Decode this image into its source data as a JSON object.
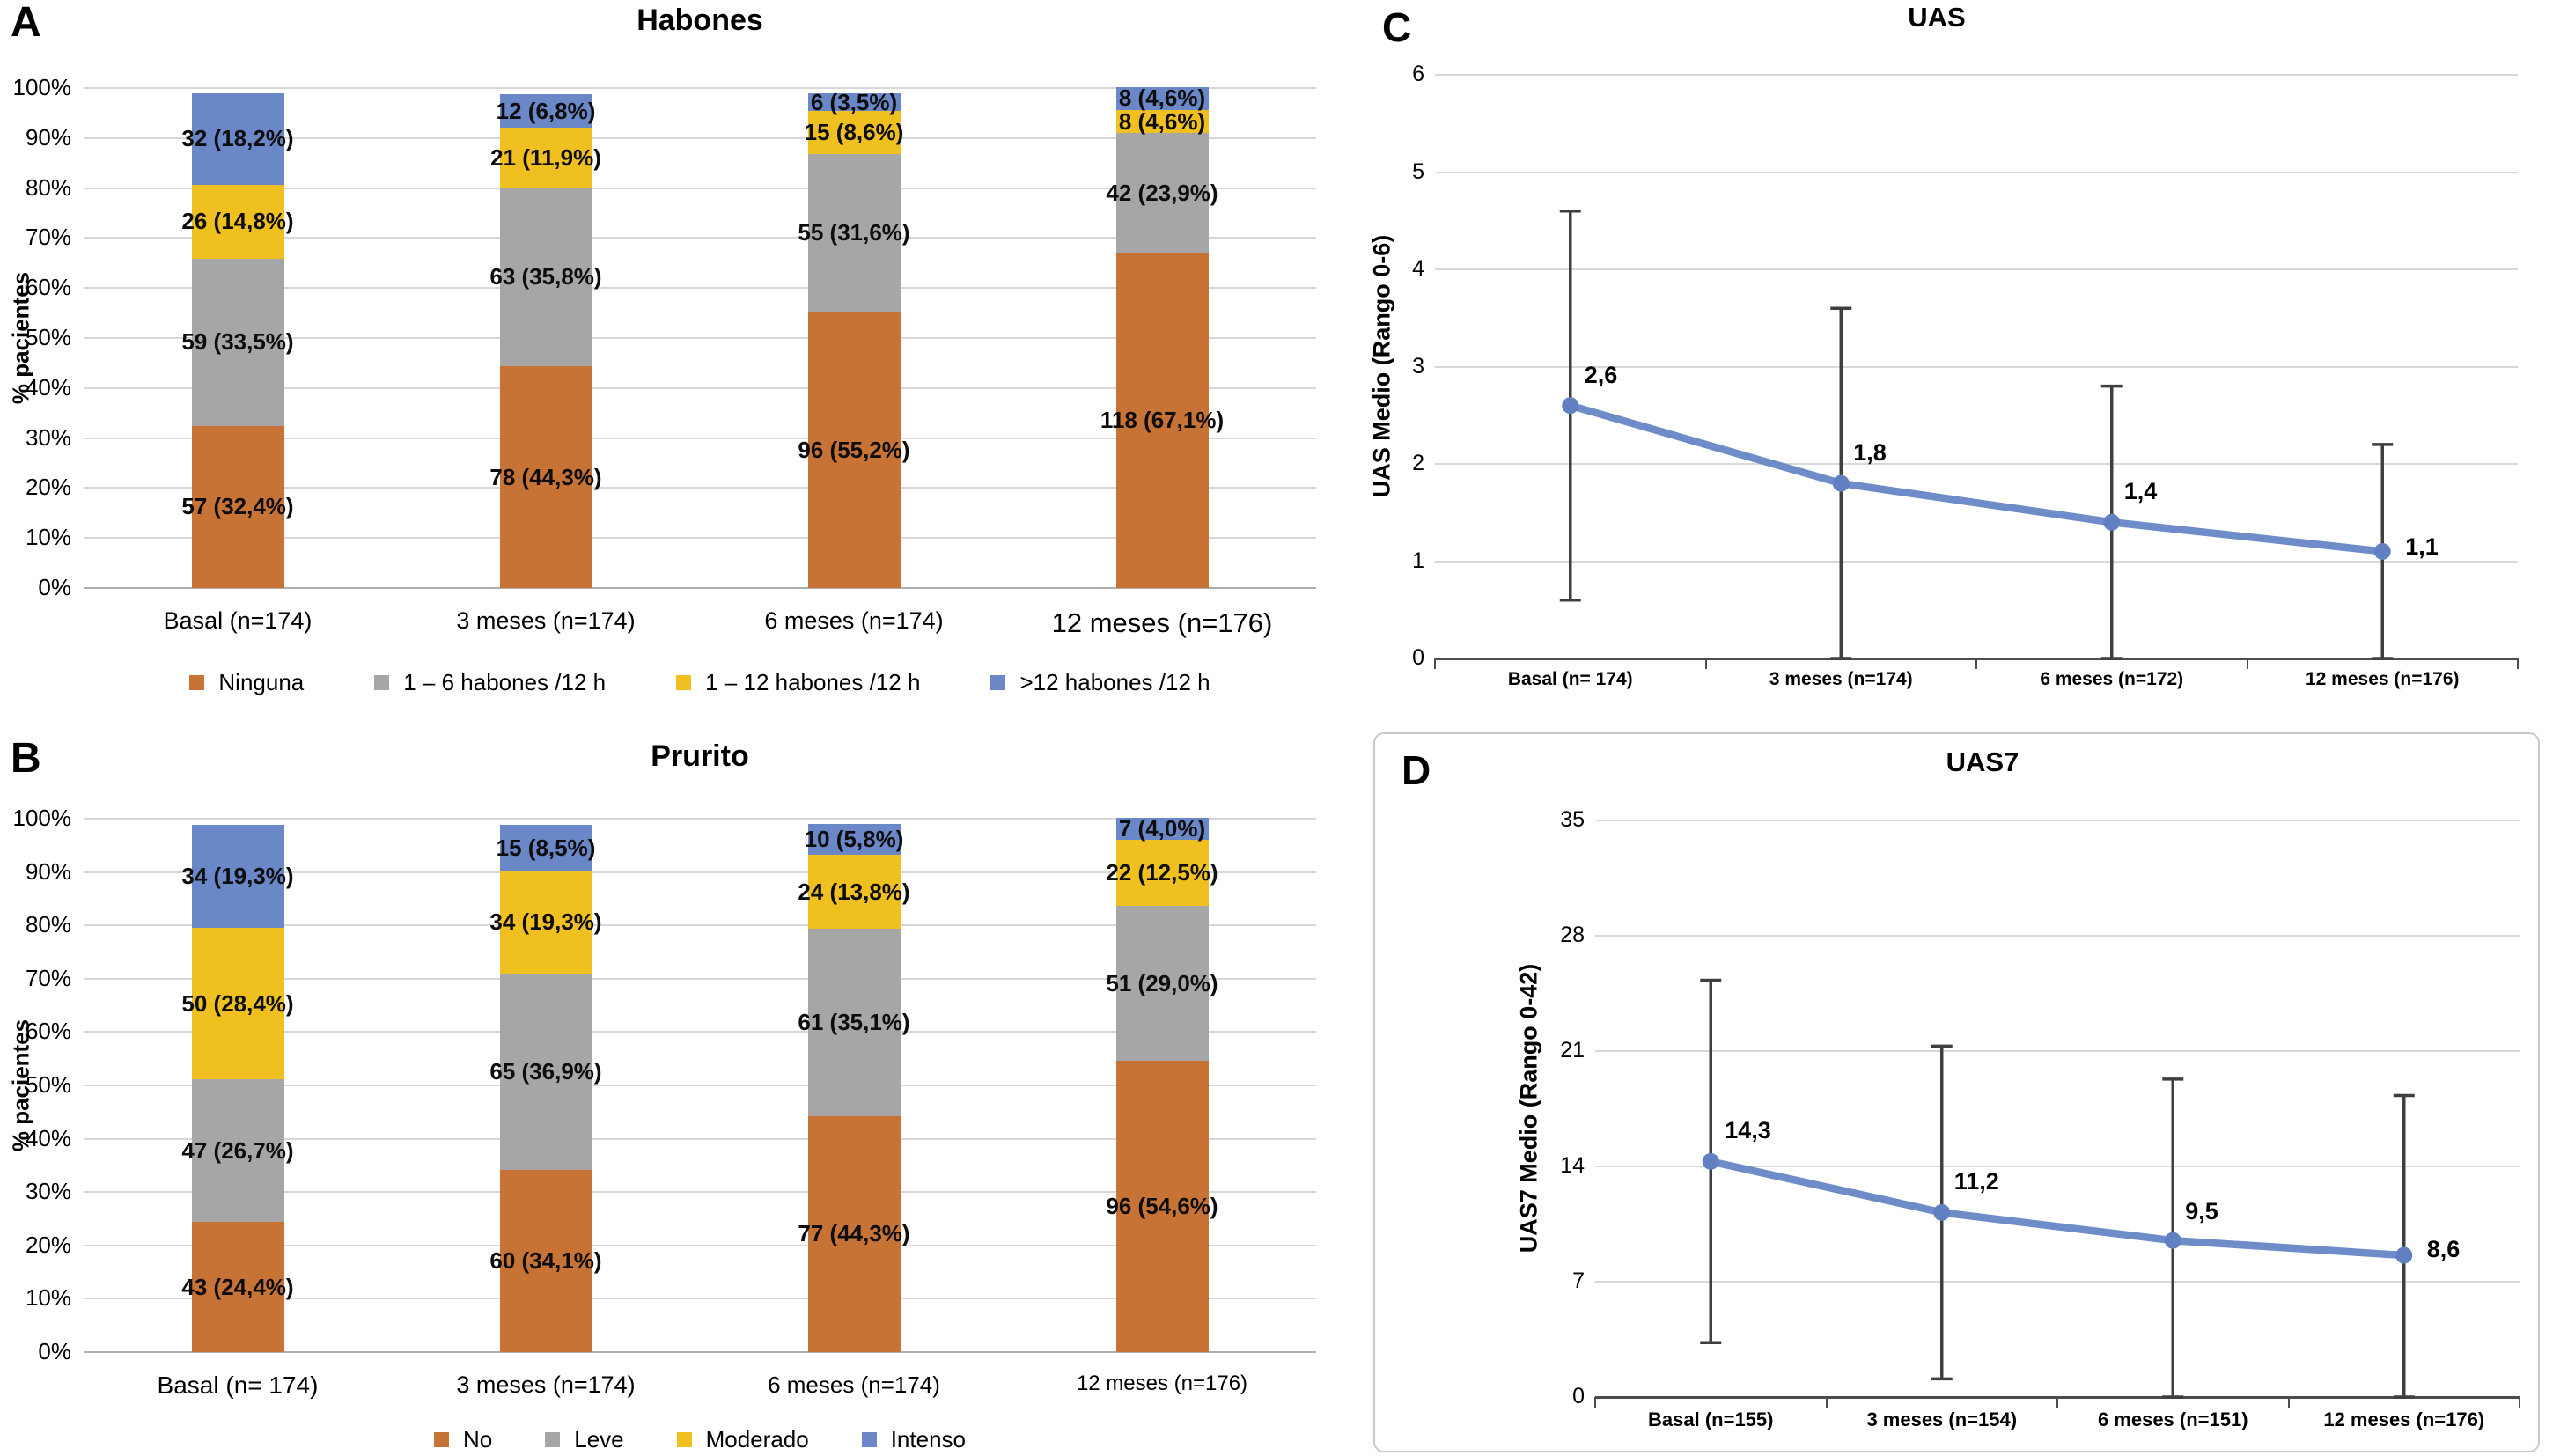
{
  "chart_data": [
    {
      "panel": "A",
      "type": "bar",
      "stacked": true,
      "title": "Habones",
      "ylabel": "% pacientes",
      "ylim": [
        0,
        100
      ],
      "grid": true,
      "legend_position": "bottom",
      "yticks": [
        "100%",
        "90%",
        "80%",
        "70%",
        "60%",
        "50%",
        "40%",
        "30%",
        "20%",
        "10%",
        "0%"
      ],
      "categories": [
        "Basal (n=174)",
        "3 meses (n=174)",
        "6 meses (n=174)",
        "12 meses (n=176)"
      ],
      "series": [
        {
          "name": "Ninguna",
          "color": "#C87336",
          "values": [
            32.4,
            44.3,
            55.2,
            67.1
          ],
          "labels": [
            "57 (32,4%)",
            "78 (44,3%)",
            "96 (55,2%)",
            "118 (67,1%)"
          ]
        },
        {
          "name": "1 – 6 habones /12 h",
          "color": "#A6A6A6",
          "values": [
            33.5,
            35.8,
            31.6,
            23.9
          ],
          "labels": [
            "59 (33,5%)",
            "63 (35,8%)",
            "55 (31,6%)",
            "42 (23,9%)"
          ]
        },
        {
          "name": "1 – 12 habones /12 h",
          "color": "#EFC01F",
          "values": [
            14.8,
            11.9,
            8.6,
            4.6
          ],
          "labels": [
            "26 (14,8%)",
            "21 (11,9%)",
            "15 (8,6%)",
            "8 (4,6%)"
          ]
        },
        {
          "name": ">12 habones /12 h",
          "color": "#6A87C8",
          "values": [
            18.2,
            6.8,
            3.5,
            4.6
          ],
          "labels": [
            "32 (18,2%)",
            "12 (6,8%)",
            "6 (3,5%)",
            "8 (4,6%)"
          ]
        }
      ]
    },
    {
      "panel": "B",
      "type": "bar",
      "stacked": true,
      "title": "Prurito",
      "ylabel": "% pacientes",
      "ylim": [
        0,
        100
      ],
      "grid": true,
      "legend_position": "bottom",
      "yticks": [
        "100%",
        "90%",
        "80%",
        "70%",
        "60%",
        "50%",
        "40%",
        "30%",
        "20%",
        "10%",
        "0%"
      ],
      "categories": [
        "Basal (n= 174)",
        "3 meses (n=174)",
        "6 meses (n=174)",
        "12 meses (n=176)"
      ],
      "series": [
        {
          "name": "No",
          "color": "#C87336",
          "values": [
            24.4,
            34.1,
            44.3,
            54.6
          ],
          "labels": [
            "43 (24,4%)",
            "60 (34,1%)",
            "77 (44,3%)",
            "96 (54,6%)"
          ]
        },
        {
          "name": "Leve",
          "color": "#A6A6A6",
          "values": [
            26.7,
            36.9,
            35.1,
            29.0
          ],
          "labels": [
            "47 (26,7%)",
            "65 (36,9%)",
            "61 (35,1%)",
            "51 (29,0%)"
          ]
        },
        {
          "name": "Moderado",
          "color": "#EFC01F",
          "values": [
            28.4,
            19.3,
            13.8,
            12.5
          ],
          "labels": [
            "50 (28,4%)",
            "34 (19,3%)",
            "24 (13,8%)",
            "22 (12,5%)"
          ]
        },
        {
          "name": "Intenso",
          "color": "#6A87C8",
          "values": [
            19.3,
            8.5,
            5.8,
            4.0
          ],
          "labels": [
            "34 (19,3%)",
            "15 (8,5%)",
            "10 (5,8%)",
            "7 (4,0%)"
          ]
        }
      ]
    },
    {
      "panel": "C",
      "type": "line",
      "title": "UAS",
      "ylabel": "UAS Medio (Rango 0-6)",
      "ylim": [
        0,
        6
      ],
      "grid": true,
      "yticks": [
        "6",
        "5",
        "4",
        "3",
        "2",
        "1",
        "0"
      ],
      "categories": [
        "Basal (n= 174)",
        "3 meses (n=174)",
        "6 meses (n=172)",
        "12 meses (n=176)"
      ],
      "values": [
        2.6,
        1.8,
        1.4,
        1.1
      ],
      "point_labels": [
        "2,6",
        "1,8",
        "1,4",
        "1,1"
      ],
      "error_high": [
        4.6,
        3.6,
        2.8,
        2.2
      ],
      "error_low": [
        0.6,
        0,
        0,
        0
      ],
      "line_color": "#6E8CC8",
      "marker_color": "#6080C2",
      "error_color": "#3F3F3F"
    },
    {
      "panel": "D",
      "type": "line",
      "title": "UAS7",
      "ylabel": "UAS7 Medio (Rango 0-42)",
      "ylim": [
        0,
        35
      ],
      "grid": true,
      "framed": true,
      "yticks": [
        "35",
        "28",
        "21",
        "14",
        "7",
        "0"
      ],
      "categories": [
        "Basal (n=155)",
        "3 meses (n=154)",
        "6 meses (n=151)",
        "12 meses (n=176)"
      ],
      "values": [
        14.3,
        11.2,
        9.5,
        8.6
      ],
      "point_labels": [
        "14,3",
        "11,2",
        "9,5",
        "8,6"
      ],
      "error_high": [
        25.3,
        21.3,
        19.3,
        18.3
      ],
      "error_low": [
        3.3,
        1.1,
        0,
        0
      ],
      "line_color": "#6E8CC8",
      "marker_color": "#6080C2",
      "error_color": "#3F3F3F"
    }
  ]
}
